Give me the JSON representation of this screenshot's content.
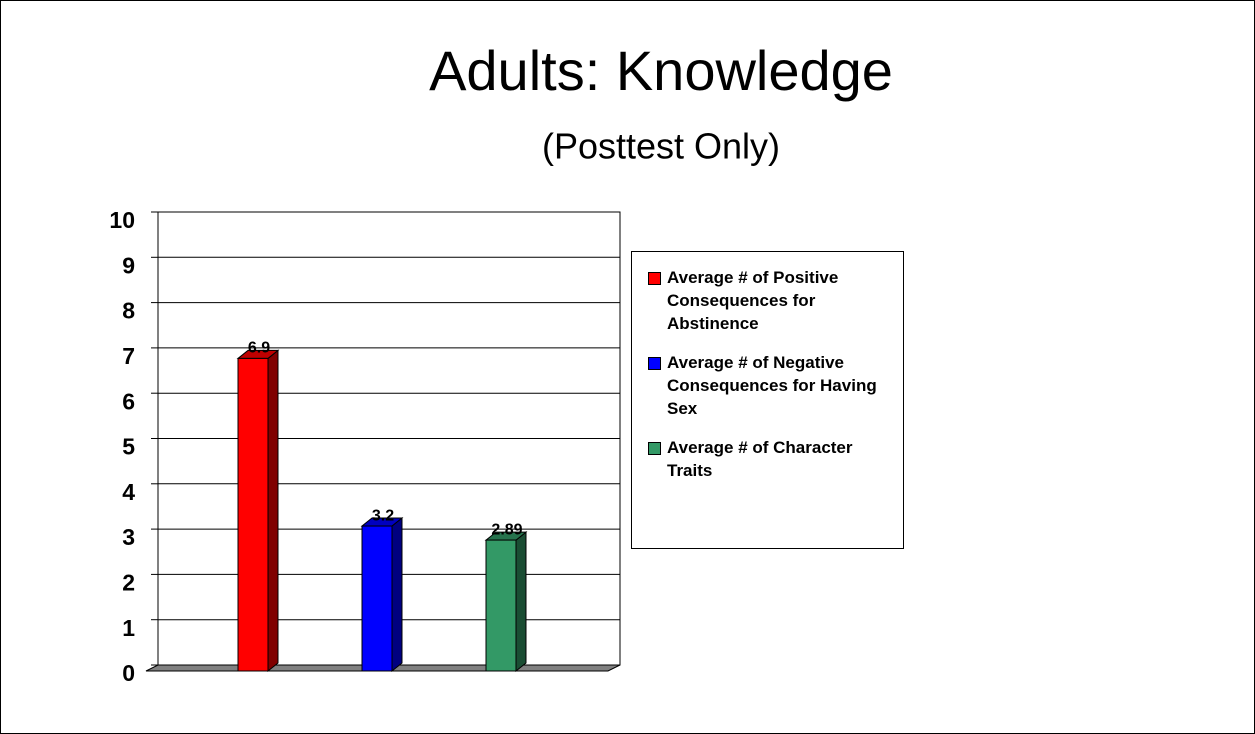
{
  "chart_data": {
    "type": "bar",
    "title": "Adults: Knowledge",
    "subtitle": "(Posttest Only)",
    "series": [
      {
        "name": "Average # of Positive Consequences for Abstinence",
        "color": "#ff0000",
        "values": [
          6.9
        ]
      },
      {
        "name": "Average # of Negative Consequences for Having Sex",
        "color": "#0000ff",
        "values": [
          3.2
        ]
      },
      {
        "name": "Average # of Character Traits",
        "color": "#339966",
        "values": [
          2.89
        ]
      }
    ],
    "ylim": [
      0,
      10
    ],
    "yticks": [
      0,
      1,
      2,
      3,
      4,
      5,
      6,
      7,
      8,
      9,
      10
    ],
    "grid": true,
    "legend": "right"
  }
}
